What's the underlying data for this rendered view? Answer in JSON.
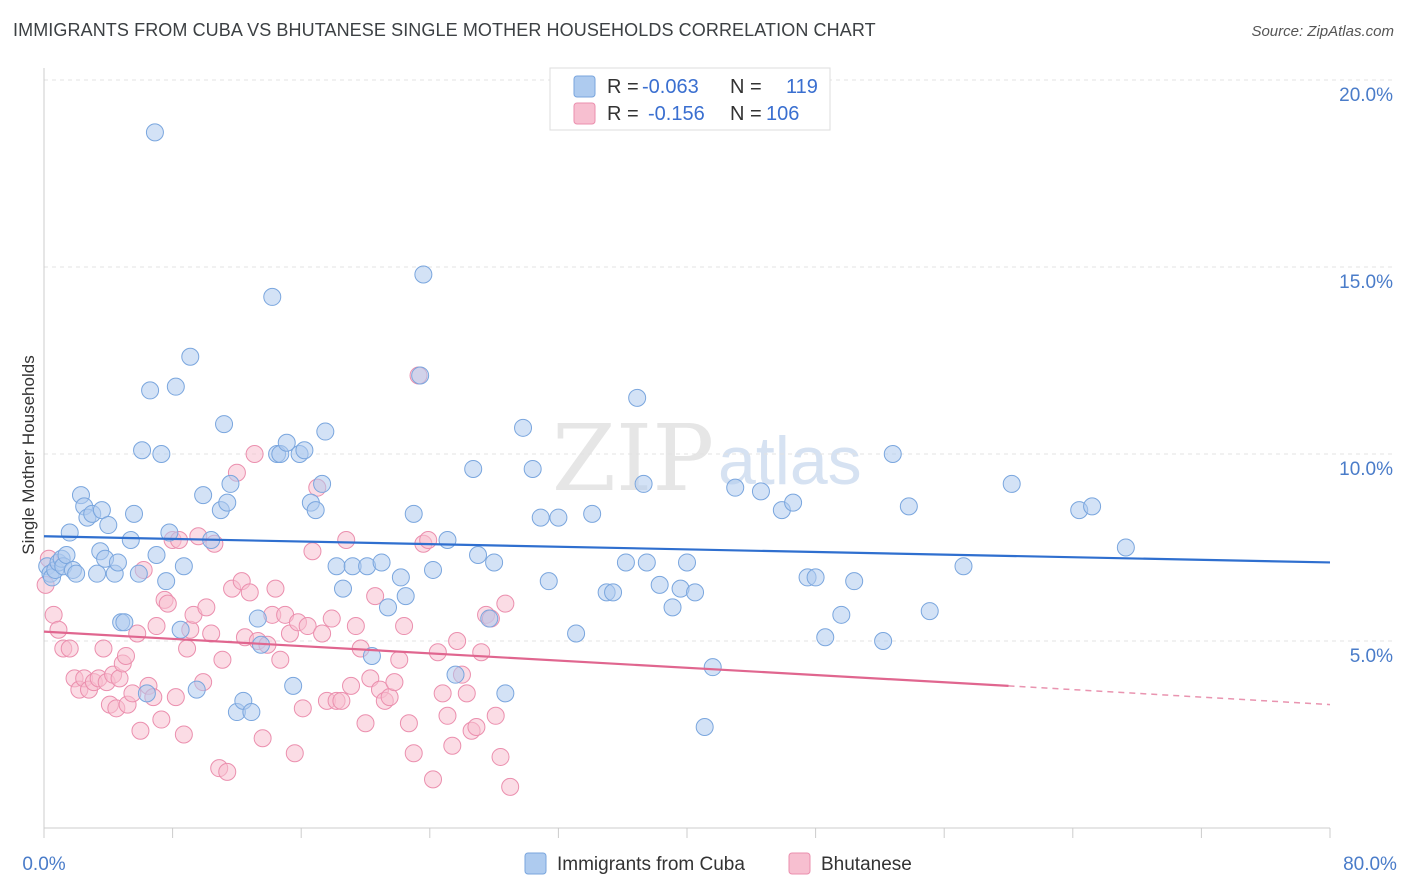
{
  "header": {
    "title": "IMMIGRANTS FROM CUBA VS BHUTANESE SINGLE MOTHER HOUSEHOLDS CORRELATION CHART",
    "source": "Source: ZipAtlas.com"
  },
  "watermark": {
    "zip": "ZIP",
    "atlas": "atlas"
  },
  "legend": {
    "rows": [
      {
        "r_label": "R =",
        "r_value": "-0.063",
        "n_label": "N =",
        "n_value": "119"
      },
      {
        "r_label": "R =",
        "r_value": "-0.156",
        "n_label": "N =",
        "n_value": "106"
      }
    ]
  },
  "colors": {
    "cuba_fill": "#aecbef",
    "cuba_stroke": "#7aa6de",
    "cuba_line": "#2f6fcf",
    "bhutan_fill": "#f7bfd0",
    "bhutan_stroke": "#eb8fae",
    "bhutan_line": "#e0668f",
    "tick_text": "#4a7cc9"
  },
  "chart_data": {
    "type": "scatter",
    "title": "IMMIGRANTS FROM CUBA VS BHUTANESE SINGLE MOTHER HOUSEHOLDS CORRELATION CHART",
    "xlabel": "",
    "ylabel": "Single Mother Households",
    "xlim": [
      0,
      80
    ],
    "ylim": [
      0,
      20
    ],
    "x_tick_labels": [
      "0.0%",
      "80.0%"
    ],
    "y_tick_labels": [
      "5.0%",
      "10.0%",
      "15.0%",
      "20.0%"
    ],
    "y_ticks": [
      5,
      10,
      15,
      20
    ],
    "grid": true,
    "legend_position": "top-center",
    "series": [
      {
        "name": "Immigrants from Cuba",
        "R": -0.063,
        "N": 119,
        "trend": {
          "x": [
            0,
            80
          ],
          "y": [
            7.8,
            7.1
          ]
        },
        "points": [
          [
            0.2,
            7.0
          ],
          [
            0.4,
            6.8
          ],
          [
            0.5,
            6.7
          ],
          [
            0.7,
            6.9
          ],
          [
            0.9,
            7.1
          ],
          [
            1.1,
            7.2
          ],
          [
            1.2,
            7.0
          ],
          [
            1.4,
            7.3
          ],
          [
            1.6,
            7.9
          ],
          [
            1.8,
            6.9
          ],
          [
            2.0,
            6.8
          ],
          [
            2.3,
            8.9
          ],
          [
            2.5,
            8.6
          ],
          [
            2.7,
            8.3
          ],
          [
            3.0,
            8.4
          ],
          [
            3.3,
            6.8
          ],
          [
            3.5,
            7.4
          ],
          [
            3.6,
            8.5
          ],
          [
            3.8,
            7.2
          ],
          [
            4.0,
            8.1
          ],
          [
            4.4,
            6.8
          ],
          [
            4.6,
            7.1
          ],
          [
            4.8,
            5.5
          ],
          [
            5.0,
            5.5
          ],
          [
            5.4,
            7.7
          ],
          [
            5.6,
            8.4
          ],
          [
            5.9,
            6.8
          ],
          [
            6.1,
            10.1
          ],
          [
            6.4,
            3.6
          ],
          [
            6.6,
            11.7
          ],
          [
            6.9,
            18.6
          ],
          [
            7.0,
            7.3
          ],
          [
            7.3,
            10.0
          ],
          [
            7.6,
            6.6
          ],
          [
            7.8,
            7.9
          ],
          [
            8.2,
            11.8
          ],
          [
            8.5,
            5.3
          ],
          [
            8.7,
            7.0
          ],
          [
            9.1,
            12.6
          ],
          [
            9.5,
            3.7
          ],
          [
            9.9,
            8.9
          ],
          [
            10.4,
            7.7
          ],
          [
            11.0,
            8.5
          ],
          [
            11.2,
            10.8
          ],
          [
            11.4,
            8.7
          ],
          [
            11.6,
            9.2
          ],
          [
            12.0,
            3.1
          ],
          [
            12.4,
            3.4
          ],
          [
            12.9,
            3.1
          ],
          [
            13.3,
            5.6
          ],
          [
            13.5,
            4.9
          ],
          [
            14.2,
            14.2
          ],
          [
            14.5,
            10.0
          ],
          [
            14.7,
            10.0
          ],
          [
            15.1,
            10.3
          ],
          [
            15.5,
            3.8
          ],
          [
            15.9,
            10.0
          ],
          [
            16.2,
            10.1
          ],
          [
            16.6,
            8.7
          ],
          [
            16.9,
            8.5
          ],
          [
            17.3,
            9.2
          ],
          [
            17.5,
            10.6
          ],
          [
            18.2,
            7.0
          ],
          [
            18.6,
            6.4
          ],
          [
            19.2,
            7.0
          ],
          [
            20.1,
            7.0
          ],
          [
            20.4,
            4.6
          ],
          [
            21.0,
            7.1
          ],
          [
            21.4,
            5.9
          ],
          [
            22.2,
            6.7
          ],
          [
            22.5,
            6.2
          ],
          [
            23.0,
            8.4
          ],
          [
            23.4,
            12.1
          ],
          [
            23.6,
            14.8
          ],
          [
            24.2,
            6.9
          ],
          [
            25.1,
            7.7
          ],
          [
            25.6,
            4.1
          ],
          [
            26.7,
            9.6
          ],
          [
            27.0,
            7.3
          ],
          [
            27.7,
            5.6
          ],
          [
            28.0,
            7.1
          ],
          [
            28.7,
            3.6
          ],
          [
            29.8,
            10.7
          ],
          [
            30.4,
            9.6
          ],
          [
            30.9,
            8.3
          ],
          [
            31.4,
            6.6
          ],
          [
            32.0,
            8.3
          ],
          [
            33.1,
            5.2
          ],
          [
            34.1,
            8.4
          ],
          [
            35.0,
            6.3
          ],
          [
            35.4,
            6.3
          ],
          [
            36.2,
            7.1
          ],
          [
            36.9,
            11.5
          ],
          [
            37.3,
            9.2
          ],
          [
            37.5,
            7.1
          ],
          [
            38.3,
            6.5
          ],
          [
            39.1,
            5.9
          ],
          [
            39.6,
            6.4
          ],
          [
            40.0,
            7.1
          ],
          [
            40.5,
            6.3
          ],
          [
            41.1,
            2.7
          ],
          [
            41.6,
            4.3
          ],
          [
            43.0,
            9.1
          ],
          [
            44.6,
            9.0
          ],
          [
            45.9,
            8.5
          ],
          [
            46.6,
            8.7
          ],
          [
            47.5,
            6.7
          ],
          [
            48.0,
            6.7
          ],
          [
            48.6,
            5.1
          ],
          [
            49.6,
            5.7
          ],
          [
            50.4,
            6.6
          ],
          [
            52.2,
            5.0
          ],
          [
            52.8,
            10.0
          ],
          [
            53.8,
            8.6
          ],
          [
            55.1,
            5.8
          ],
          [
            57.2,
            7.0
          ],
          [
            60.2,
            9.2
          ],
          [
            64.4,
            8.5
          ],
          [
            65.2,
            8.6
          ],
          [
            67.3,
            7.5
          ]
        ]
      },
      {
        "name": "Bhutanese",
        "R": -0.156,
        "N": 106,
        "trend": {
          "x": [
            0,
            60
          ],
          "y": [
            5.25,
            3.8
          ]
        },
        "trend_dashed": {
          "x": [
            60,
            80
          ],
          "y": [
            3.8,
            3.3
          ]
        },
        "points": [
          [
            0.1,
            6.5
          ],
          [
            0.3,
            7.2
          ],
          [
            0.6,
            5.7
          ],
          [
            0.9,
            5.3
          ],
          [
            1.2,
            4.8
          ],
          [
            1.6,
            4.8
          ],
          [
            1.9,
            4.0
          ],
          [
            2.2,
            3.7
          ],
          [
            2.5,
            4.0
          ],
          [
            2.8,
            3.7
          ],
          [
            3.1,
            3.9
          ],
          [
            3.4,
            4.0
          ],
          [
            3.7,
            4.8
          ],
          [
            3.9,
            3.9
          ],
          [
            4.1,
            3.3
          ],
          [
            4.3,
            4.1
          ],
          [
            4.5,
            3.2
          ],
          [
            4.7,
            4.0
          ],
          [
            4.9,
            4.4
          ],
          [
            5.1,
            4.6
          ],
          [
            5.2,
            3.3
          ],
          [
            5.5,
            3.6
          ],
          [
            5.8,
            5.2
          ],
          [
            6.0,
            2.6
          ],
          [
            6.2,
            6.9
          ],
          [
            6.5,
            3.8
          ],
          [
            6.8,
            3.5
          ],
          [
            7.0,
            5.4
          ],
          [
            7.3,
            2.9
          ],
          [
            7.5,
            6.1
          ],
          [
            7.7,
            6.0
          ],
          [
            8.0,
            7.7
          ],
          [
            8.2,
            3.5
          ],
          [
            8.4,
            7.7
          ],
          [
            8.7,
            2.5
          ],
          [
            8.9,
            4.8
          ],
          [
            9.1,
            5.3
          ],
          [
            9.3,
            5.7
          ],
          [
            9.6,
            7.8
          ],
          [
            9.9,
            3.9
          ],
          [
            10.1,
            5.9
          ],
          [
            10.4,
            5.2
          ],
          [
            10.6,
            7.6
          ],
          [
            10.9,
            1.6
          ],
          [
            11.1,
            4.5
          ],
          [
            11.4,
            1.5
          ],
          [
            11.7,
            6.4
          ],
          [
            12.0,
            9.5
          ],
          [
            12.3,
            6.6
          ],
          [
            12.5,
            5.1
          ],
          [
            12.8,
            6.3
          ],
          [
            13.1,
            10.0
          ],
          [
            13.3,
            5.0
          ],
          [
            13.6,
            2.4
          ],
          [
            13.9,
            4.9
          ],
          [
            14.2,
            5.7
          ],
          [
            14.4,
            6.4
          ],
          [
            14.7,
            4.5
          ],
          [
            15.0,
            5.7
          ],
          [
            15.3,
            5.2
          ],
          [
            15.6,
            2.0
          ],
          [
            15.8,
            5.5
          ],
          [
            16.1,
            3.2
          ],
          [
            16.4,
            5.4
          ],
          [
            16.7,
            7.4
          ],
          [
            17.0,
            9.1
          ],
          [
            17.3,
            5.2
          ],
          [
            17.6,
            3.4
          ],
          [
            17.9,
            5.6
          ],
          [
            18.2,
            3.4
          ],
          [
            18.5,
            3.4
          ],
          [
            18.8,
            7.7
          ],
          [
            19.1,
            3.8
          ],
          [
            19.4,
            5.4
          ],
          [
            19.7,
            4.8
          ],
          [
            20.0,
            2.8
          ],
          [
            20.3,
            4.0
          ],
          [
            20.6,
            6.2
          ],
          [
            20.9,
            3.7
          ],
          [
            21.2,
            3.4
          ],
          [
            21.5,
            3.5
          ],
          [
            21.8,
            3.9
          ],
          [
            22.1,
            4.5
          ],
          [
            22.4,
            5.4
          ],
          [
            22.7,
            2.8
          ],
          [
            23.0,
            2.0
          ],
          [
            23.3,
            12.1
          ],
          [
            23.6,
            7.6
          ],
          [
            23.9,
            7.7
          ],
          [
            24.2,
            1.3
          ],
          [
            24.5,
            4.7
          ],
          [
            24.8,
            3.6
          ],
          [
            25.1,
            3.0
          ],
          [
            25.4,
            2.2
          ],
          [
            25.7,
            5.0
          ],
          [
            26.0,
            4.1
          ],
          [
            26.3,
            3.6
          ],
          [
            26.6,
            2.6
          ],
          [
            26.9,
            2.7
          ],
          [
            27.2,
            4.7
          ],
          [
            27.5,
            5.7
          ],
          [
            27.8,
            5.6
          ],
          [
            28.1,
            3.0
          ],
          [
            28.4,
            1.9
          ],
          [
            28.7,
            6.0
          ],
          [
            29.0,
            1.1
          ]
        ]
      }
    ]
  },
  "bottom_legend": [
    {
      "label": "Immigrants from Cuba"
    },
    {
      "label": "Bhutanese"
    }
  ]
}
